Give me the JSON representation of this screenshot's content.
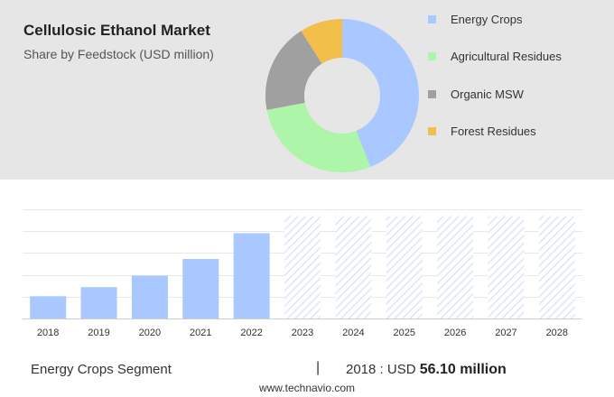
{
  "header": {
    "title": "Cellulosic Ethanol Market",
    "subtitle": "Share by Feedstock (USD million)"
  },
  "chart_data": [
    {
      "type": "pie",
      "donut": true,
      "title": "Cellulosic Ethanol Market",
      "subtitle": "Share by Feedstock (USD million)",
      "legend": "right",
      "slices": [
        {
          "name": "Energy Crops",
          "value": 44,
          "color": "#a8c8ff"
        },
        {
          "name": "Agricultural Residues",
          "value": 28,
          "color": "#adf5a8"
        },
        {
          "name": "Organic MSW",
          "value": 19,
          "color": "#a0a0a0"
        },
        {
          "name": "Forest Residues",
          "value": 9,
          "color": "#f2c04a"
        }
      ]
    },
    {
      "type": "bar",
      "categories": [
        "2018",
        "2019",
        "2020",
        "2021",
        "2022",
        "2023",
        "2024",
        "2025",
        "2026",
        "2027",
        "2028"
      ],
      "values": [
        56.1,
        79,
        108,
        150,
        215,
        258,
        258,
        258,
        258,
        258,
        258
      ],
      "forecast_from": "2023",
      "ylim": [
        0,
        275
      ],
      "grid": true,
      "colors": {
        "actual": "#a8c8ff",
        "forecast": "#dde6f7"
      }
    }
  ],
  "footer": {
    "segment_label": "Energy Crops Segment",
    "divider": "|",
    "value_prefix": "2018 : USD",
    "value_amount": "56.10 million"
  },
  "source": "www.technavio.com"
}
